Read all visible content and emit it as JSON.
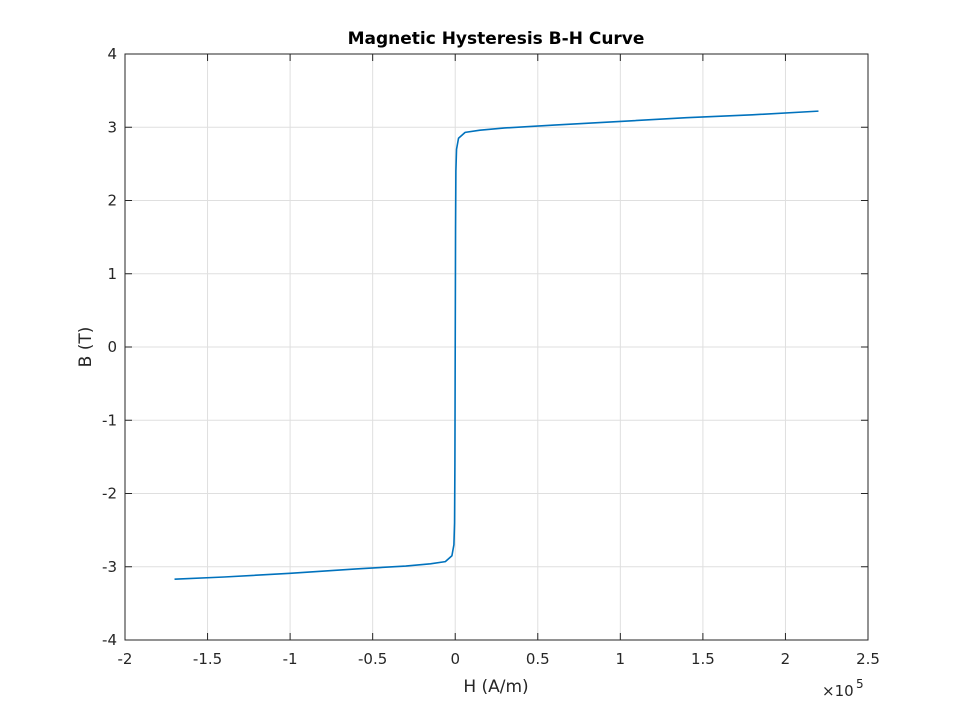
{
  "chart_data": {
    "type": "line",
    "title": "Magnetic Hysteresis B-H Curve",
    "xlabel": "H (A/m)",
    "ylabel": "B (T)",
    "xlim": [
      -2,
      2.5
    ],
    "ylim": [
      -4,
      4
    ],
    "x_exponent_label": "×10",
    "x_exponent_power": "5",
    "x_ticks": [
      "-2",
      "-1.5",
      "-1",
      "-0.5",
      "0",
      "0.5",
      "1",
      "1.5",
      "2",
      "2.5"
    ],
    "y_ticks": [
      "-4",
      "-3",
      "-2",
      "-1",
      "0",
      "1",
      "2",
      "3",
      "4"
    ],
    "grid": true,
    "line_color": "#0072BD",
    "series": [
      {
        "x": [
          -1.7,
          -1.4,
          -1.0,
          -0.6,
          -0.3,
          -0.15,
          -0.06,
          -0.02,
          -0.008,
          -0.004,
          -0.002,
          -0.001,
          0.0,
          0.001,
          0.002,
          0.004,
          0.008,
          0.02,
          0.06,
          0.15,
          0.3,
          0.6,
          1.0,
          1.4,
          1.8,
          2.2
        ],
        "y": [
          -3.17,
          -3.14,
          -3.09,
          -3.03,
          -2.99,
          -2.96,
          -2.93,
          -2.85,
          -2.7,
          -2.4,
          -1.6,
          -0.8,
          0.0,
          0.8,
          1.6,
          2.4,
          2.7,
          2.85,
          2.93,
          2.96,
          2.99,
          3.03,
          3.08,
          3.13,
          3.17,
          3.22
        ]
      }
    ]
  }
}
